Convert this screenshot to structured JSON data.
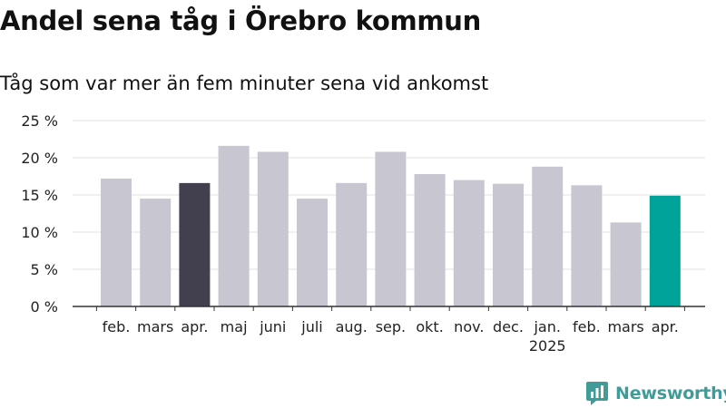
{
  "title": "Andel sena tåg i Örebro kommun",
  "subtitle": "Tåg som var mer än fem minuter sena vid ankomst",
  "brand": "Newsworthy",
  "colors": {
    "bar_default": "#c8c6d0",
    "bar_reference": "#42404e",
    "bar_current": "#00a399",
    "brand": "#3f9c98",
    "grid": "#e2e2e2",
    "axis": "#333333"
  },
  "chart_data": {
    "type": "bar",
    "categories": [
      "feb.",
      "mars",
      "apr.",
      "maj",
      "juni",
      "juli",
      "aug.",
      "sep.",
      "okt.",
      "nov.",
      "dec.",
      "jan.",
      "feb.",
      "mars",
      "apr."
    ],
    "year_labels": [
      {
        "index": 11,
        "label": "2025"
      }
    ],
    "values": [
      17.2,
      14.5,
      16.6,
      21.6,
      20.8,
      14.5,
      16.6,
      20.8,
      17.8,
      17.0,
      16.5,
      18.8,
      16.3,
      11.3,
      14.9
    ],
    "highlight": {
      "2": "reference",
      "14": "current"
    },
    "ylim": [
      0,
      25
    ],
    "yticks": [
      0,
      5,
      10,
      15,
      20,
      25
    ],
    "ytick_suffix": " %",
    "grid": true
  }
}
